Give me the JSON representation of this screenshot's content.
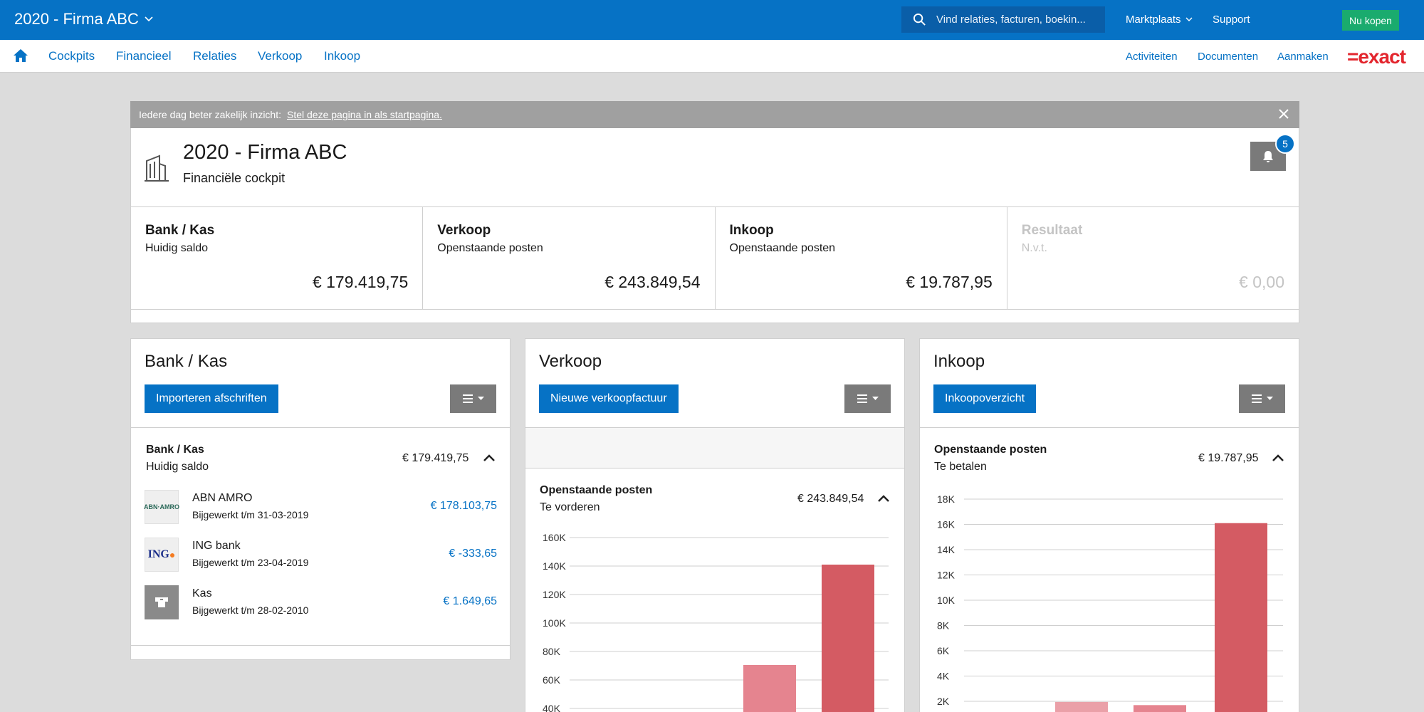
{
  "topbar": {
    "app_title": "2020 - Firma ABC",
    "search_placeholder": "Vind relaties, facturen, boekin...",
    "marketplace": "Marktplaats",
    "support": "Support",
    "buy": "Nu kopen"
  },
  "nav": {
    "items": [
      "Cockpits",
      "Financieel",
      "Relaties",
      "Verkoop",
      "Inkoop"
    ],
    "right": [
      "Activiteiten",
      "Documenten",
      "Aanmaken"
    ],
    "logo": "=exact"
  },
  "notice": {
    "text": "Iedere dag beter zakelijk inzicht:",
    "link": "Stel deze pagina in als startpagina."
  },
  "header": {
    "company": "2020 - Firma ABC",
    "subtitle": "Financiële cockpit",
    "notifications": "5"
  },
  "kpis": [
    {
      "title": "Bank / Kas",
      "subtitle": "Huidig saldo",
      "value": "€ 179.419,75"
    },
    {
      "title": "Verkoop",
      "subtitle": "Openstaande posten",
      "value": "€ 243.849,54"
    },
    {
      "title": "Inkoop",
      "subtitle": "Openstaande posten",
      "value": "€ 19.787,95"
    },
    {
      "title": "Resultaat",
      "subtitle": "N.v.t.",
      "value": "€ 0,00"
    }
  ],
  "bank_widget": {
    "title": "Bank / Kas",
    "button": "Importeren afschriften",
    "section_title": "Bank / Kas",
    "section_sub": "Huidig saldo",
    "section_amount": "€ 179.419,75",
    "accounts": [
      {
        "logo": "ABN·AMRO",
        "name": "ABN AMRO",
        "updated": "Bijgewerkt t/m 31-03-2019",
        "amount": "€ 178.103,75"
      },
      {
        "logo": "ING",
        "name": "ING bank",
        "updated": "Bijgewerkt t/m 23-04-2019",
        "amount": "€ -333,65"
      },
      {
        "logo": "",
        "name": "Kas",
        "updated": "Bijgewerkt t/m 28-02-2010",
        "amount": "€ 1.649,65"
      }
    ]
  },
  "sales_widget": {
    "title": "Verkoop",
    "button": "Nieuwe verkoopfactuur",
    "section_title": "Openstaande posten",
    "section_sub": "Te vorderen",
    "section_amount": "€ 243.849,54"
  },
  "purchase_widget": {
    "title": "Inkoop",
    "button": "Inkoopoverzicht",
    "section_title": "Openstaande posten",
    "section_sub": "Te betalen",
    "section_amount": "€ 19.787,95"
  },
  "colors": {
    "brand": "#0672c5",
    "bar_light": "#eaa0a8",
    "bar_medium": "#e5848f",
    "bar_dark": "#d45b63"
  },
  "chart_data": [
    {
      "type": "bar",
      "title": "",
      "ylim": [
        0,
        160000
      ],
      "yticks": [
        40000,
        60000,
        80000,
        100000,
        120000,
        140000,
        160000
      ],
      "ytick_labels": [
        "40K",
        "60K",
        "80K",
        "100K",
        "120K",
        "140K",
        "160K"
      ],
      "bars": [
        {
          "value": 70500,
          "shade": "medium"
        },
        {
          "value": 141000,
          "shade": "dark"
        }
      ]
    },
    {
      "type": "bar",
      "title": "",
      "ylim": [
        0,
        18000
      ],
      "yticks": [
        2000,
        4000,
        6000,
        8000,
        10000,
        12000,
        14000,
        16000,
        18000
      ],
      "ytick_labels": [
        "2K",
        "4K",
        "6K",
        "8K",
        "10K",
        "12K",
        "14K",
        "16K",
        "18K"
      ],
      "bars": [
        {
          "value": 1950,
          "shade": "light"
        },
        {
          "value": 1700,
          "shade": "medium"
        },
        {
          "value": 16100,
          "shade": "dark"
        }
      ]
    }
  ]
}
